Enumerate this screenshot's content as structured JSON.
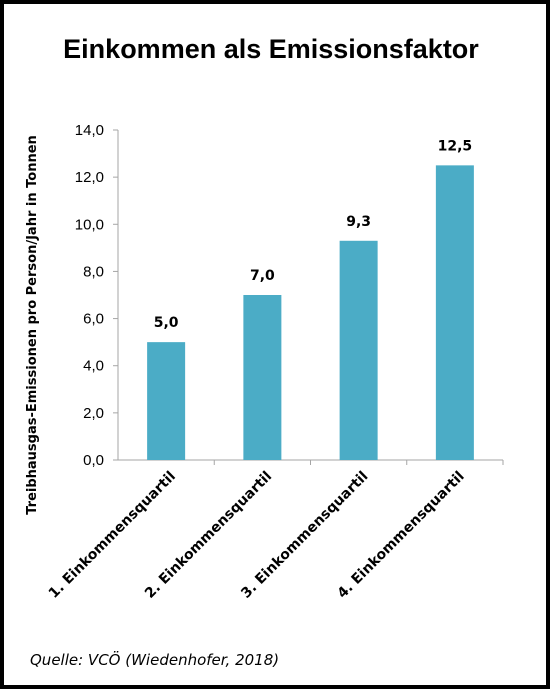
{
  "chart_data": {
    "type": "bar",
    "title": "Einkommen als Emissionsfaktor",
    "ylabel": "Treibhausgas-Emissionen  pro Person/Jahr in Tonnen",
    "xlabel": "",
    "categories": [
      "1. Einkommensquartil",
      "2. Einkommensquartil",
      "3. Einkommensquartil",
      "4. Einkommensquartil"
    ],
    "values": [
      5.0,
      7.0,
      9.3,
      12.5
    ],
    "value_labels": [
      "5,0",
      "7,0",
      "9,3",
      "12,5"
    ],
    "ylim": [
      0,
      14
    ],
    "yticks": [
      0,
      2,
      4,
      6,
      8,
      10,
      12,
      14
    ],
    "ytick_labels": [
      "0,0",
      "2,0",
      "4,0",
      "6,0",
      "8,0",
      "10,0",
      "12,0",
      "14,0"
    ],
    "bar_color": "#4bacc6",
    "grid": false,
    "legend": "none"
  },
  "source": "Quelle: VCÖ (Wiedenhofer, 2018)"
}
